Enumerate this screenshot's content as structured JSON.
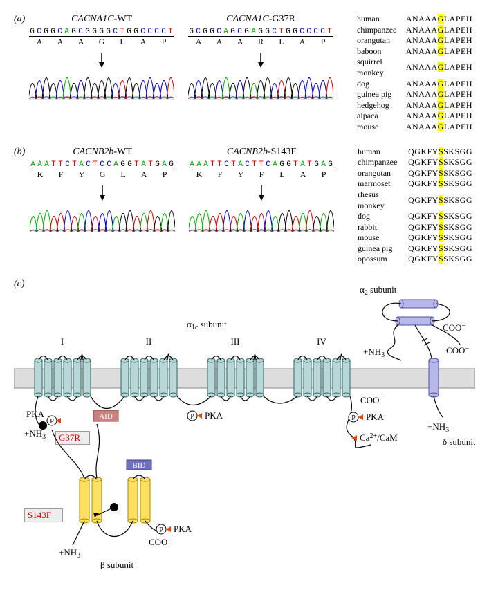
{
  "panelA": {
    "label": "(a)",
    "traces": [
      {
        "title_italic": "CACNA1C",
        "title_suffix": "-WT",
        "nucleotides": [
          "G",
          "C",
          "G",
          "G",
          "C",
          "A",
          "G",
          "C",
          "G",
          "G",
          "G",
          "G",
          "C",
          "T",
          "G",
          "G",
          "C",
          "C",
          "C",
          "C",
          "T"
        ],
        "amino_acids": [
          "A",
          "A",
          "A",
          "G",
          "L",
          "A",
          "P"
        ],
        "arrow_index": 10
      },
      {
        "title_italic": "CACNA1C",
        "title_suffix": "-G37R",
        "nucleotides": [
          "G",
          "C",
          "G",
          "G",
          "C",
          "A",
          "G",
          "C",
          "G",
          "A",
          "G",
          "G",
          "C",
          "T",
          "G",
          "G",
          "C",
          "C",
          "C",
          "C",
          "T"
        ],
        "amino_acids": [
          "A",
          "A",
          "A",
          "R",
          "L",
          "A",
          "P"
        ],
        "arrow_index": 10
      }
    ],
    "conservation": {
      "species": [
        "human",
        "chimpanzee",
        "orangutan",
        "baboon",
        "squirrel monkey",
        "dog",
        "guinea pig",
        "hedgehog",
        "alpaca",
        "mouse"
      ],
      "seq_prefix": "ANAAA",
      "seq_highlight": "G",
      "seq_suffix": "LAPEH"
    }
  },
  "panelB": {
    "label": "(b)",
    "traces": [
      {
        "title_italic": "CACNB2b",
        "title_suffix": "-WT",
        "nucleotides": [
          "A",
          "A",
          "A",
          "T",
          "T",
          "C",
          "T",
          "A",
          "C",
          "T",
          "C",
          "C",
          "A",
          "G",
          "G",
          "T",
          "A",
          "T",
          "G",
          "A",
          "G"
        ],
        "amino_acids": [
          "K",
          "F",
          "Y",
          "G",
          "L",
          "A",
          "P"
        ],
        "arrow_index": 10
      },
      {
        "title_italic": "CACNB2b",
        "title_suffix": "-S143F",
        "nucleotides": [
          "A",
          "A",
          "A",
          "T",
          "T",
          "C",
          "T",
          "A",
          "C",
          "T",
          "T",
          "C",
          "A",
          "G",
          "G",
          "T",
          "A",
          "T",
          "G",
          "A",
          "G"
        ],
        "amino_acids": [
          "K",
          "F",
          "Y",
          "F",
          "L",
          "A",
          "P"
        ],
        "arrow_index": 10
      }
    ],
    "conservation": {
      "species": [
        "human",
        "chimpanzee",
        "orangutan",
        "marmoset",
        "rhesus monkey",
        "dog",
        "rabbit",
        "mouse",
        "guinea pig",
        "opossum"
      ],
      "seq_prefix": "QGKFY",
      "seq_highlight": "S",
      "seq_suffix": "SKSGG"
    }
  },
  "panelC": {
    "label": "(c)",
    "alpha1c_label": "α",
    "alpha1c_sub": "1c",
    "alpha1c_suffix": " subunit",
    "alpha2_label": "α",
    "alpha2_sub": "2",
    "alpha2_suffix": " subunit",
    "beta_label": "β subunit",
    "delta_label": "δ subunit",
    "domains": [
      "I",
      "II",
      "III",
      "IV"
    ],
    "g37r": "G37R",
    "s143f": "S143F",
    "aid": "AID",
    "bid": "BID",
    "pka": "PKA",
    "cacam": "Ca",
    "cacam_sup": "2+",
    "cacam_suffix": "/CaM",
    "nh3": "NH",
    "nh3_sub": "3",
    "coo": "COO",
    "coo_sup": "−",
    "plus": "+"
  },
  "colors": {
    "A": "#00aa00",
    "C": "#0000cc",
    "G": "#000000",
    "T": "#cc0000",
    "membrane_fill": "#dddddd",
    "membrane_stroke": "#888888",
    "alpha_cyl_fill": "#b8d8d8",
    "alpha_cyl_stroke": "#336666",
    "delta_cyl_fill": "#b8b8e8",
    "delta_cyl_stroke": "#5050a0",
    "beta_cyl_fill": "#ffe060",
    "beta_cyl_stroke": "#aa8800",
    "aid_fill": "#c88080",
    "aid_stroke": "#884444",
    "bid_fill": "#7070c0",
    "bid_stroke": "#404080",
    "p_fill": "#ffffff",
    "p_stroke": "#000000",
    "triangle": "#ee4400",
    "mut_dot": "#000000"
  }
}
